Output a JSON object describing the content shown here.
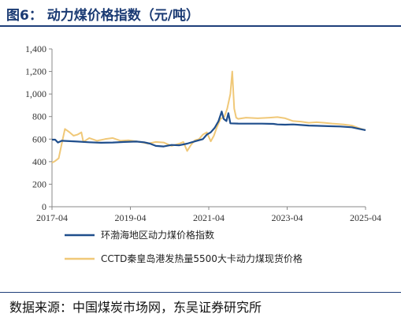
{
  "title": "图6：  动力煤价格指数（元/吨）",
  "source": "数据来源：中国煤炭市场网，东吴证券研究所",
  "chart_data": {
    "type": "line",
    "y_ticks": [
      "0",
      "200",
      "400",
      "600",
      "800",
      "1,000",
      "1,200",
      "1,400"
    ],
    "x_ticks": [
      "2017-04",
      "2019-04",
      "2021-04",
      "2023-04",
      "2025-04"
    ],
    "ylim": [
      0,
      1400
    ],
    "xlim": [
      2017.25,
      2025.25
    ],
    "grid": false,
    "legend_position": "bottom",
    "series": [
      {
        "name": "环渤海地区动力煤价格指数",
        "color": "#1f4e8c",
        "points": [
          [
            2017.25,
            595
          ],
          [
            2017.33,
            595
          ],
          [
            2017.4,
            570
          ],
          [
            2017.5,
            585
          ],
          [
            2017.7,
            582
          ],
          [
            2017.9,
            578
          ],
          [
            2018.2,
            572
          ],
          [
            2018.5,
            568
          ],
          [
            2018.8,
            570
          ],
          [
            2019.1,
            575
          ],
          [
            2019.4,
            578
          ],
          [
            2019.6,
            572
          ],
          [
            2019.75,
            560
          ],
          [
            2019.9,
            540
          ],
          [
            2020.1,
            535
          ],
          [
            2020.3,
            548
          ],
          [
            2020.5,
            545
          ],
          [
            2020.7,
            560
          ],
          [
            2020.9,
            580
          ],
          [
            2021.0,
            590
          ],
          [
            2021.1,
            600
          ],
          [
            2021.2,
            640
          ],
          [
            2021.3,
            660
          ],
          [
            2021.4,
            700
          ],
          [
            2021.5,
            760
          ],
          [
            2021.58,
            845
          ],
          [
            2021.63,
            780
          ],
          [
            2021.7,
            760
          ],
          [
            2021.75,
            830
          ],
          [
            2021.8,
            740
          ],
          [
            2022.0,
            738
          ],
          [
            2022.3,
            737
          ],
          [
            2022.6,
            737
          ],
          [
            2022.9,
            735
          ],
          [
            2023.0,
            730
          ],
          [
            2023.2,
            728
          ],
          [
            2023.4,
            730
          ],
          [
            2023.6,
            725
          ],
          [
            2023.8,
            720
          ],
          [
            2024.0,
            718
          ],
          [
            2024.3,
            715
          ],
          [
            2024.6,
            712
          ],
          [
            2024.9,
            705
          ],
          [
            2025.1,
            690
          ],
          [
            2025.25,
            680
          ]
        ]
      },
      {
        "name": "CCTD秦皇岛港发热量5500大卡动力煤现货价格",
        "color": "#f0c878",
        "points": [
          [
            2017.25,
            390
          ],
          [
            2017.33,
            405
          ],
          [
            2017.42,
            430
          ],
          [
            2017.5,
            560
          ],
          [
            2017.58,
            690
          ],
          [
            2017.7,
            660
          ],
          [
            2017.8,
            630
          ],
          [
            2017.9,
            640
          ],
          [
            2018.0,
            660
          ],
          [
            2018.05,
            575
          ],
          [
            2018.2,
            610
          ],
          [
            2018.4,
            585
          ],
          [
            2018.6,
            600
          ],
          [
            2018.8,
            610
          ],
          [
            2019.0,
            585
          ],
          [
            2019.2,
            590
          ],
          [
            2019.5,
            575
          ],
          [
            2019.7,
            560
          ],
          [
            2019.9,
            575
          ],
          [
            2020.1,
            570
          ],
          [
            2020.3,
            540
          ],
          [
            2020.5,
            560
          ],
          [
            2020.6,
            575
          ],
          [
            2020.7,
            495
          ],
          [
            2020.8,
            550
          ],
          [
            2020.9,
            590
          ],
          [
            2021.0,
            600
          ],
          [
            2021.1,
            640
          ],
          [
            2021.2,
            660
          ],
          [
            2021.3,
            580
          ],
          [
            2021.38,
            630
          ],
          [
            2021.45,
            700
          ],
          [
            2021.55,
            780
          ],
          [
            2021.65,
            800
          ],
          [
            2021.72,
            870
          ],
          [
            2021.8,
            1000
          ],
          [
            2021.85,
            1200
          ],
          [
            2021.9,
            870
          ],
          [
            2021.95,
            790
          ],
          [
            2022.0,
            780
          ],
          [
            2022.2,
            790
          ],
          [
            2022.5,
            785
          ],
          [
            2022.8,
            790
          ],
          [
            2023.0,
            795
          ],
          [
            2023.2,
            785
          ],
          [
            2023.4,
            760
          ],
          [
            2023.6,
            755
          ],
          [
            2023.8,
            745
          ],
          [
            2024.0,
            750
          ],
          [
            2024.2,
            745
          ],
          [
            2024.4,
            738
          ],
          [
            2024.7,
            730
          ],
          [
            2024.9,
            720
          ],
          [
            2025.1,
            695
          ],
          [
            2025.25,
            680
          ]
        ]
      }
    ]
  }
}
